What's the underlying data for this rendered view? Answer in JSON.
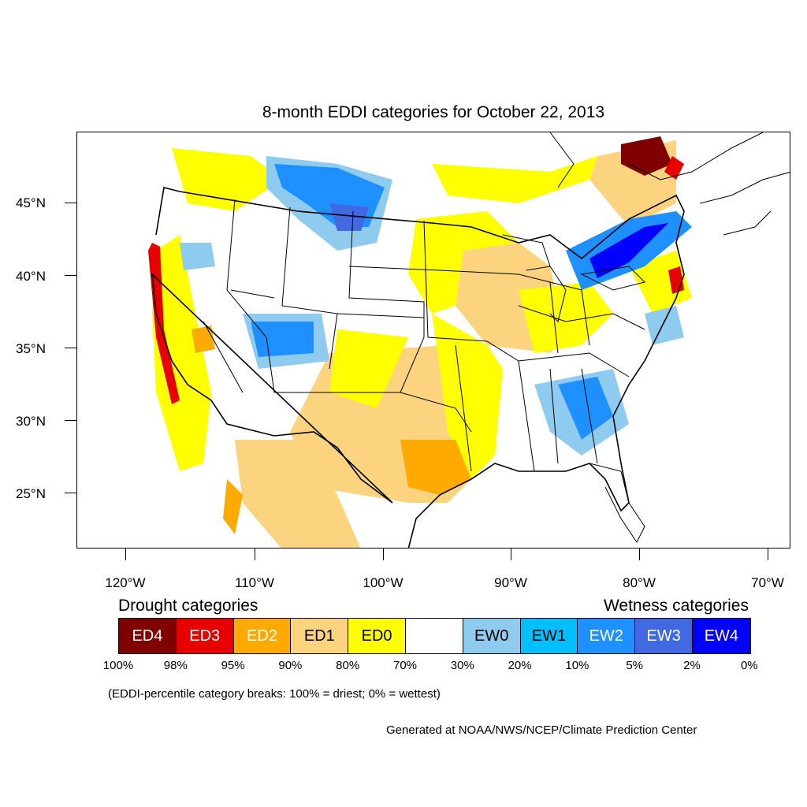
{
  "title": "8-month EDDI categories for October 22, 2013",
  "map": {
    "lat_labels": [
      "45°N",
      "40°N",
      "35°N",
      "30°N",
      "25°N"
    ],
    "lon_labels": [
      "120°W",
      "110°W",
      "100°W",
      "90°W",
      "80°W",
      "70°W"
    ],
    "colors": {
      "ED4": "#800000",
      "ED3": "#e60000",
      "ED2": "#ffaa00",
      "ED1": "#fcd37f",
      "ED0": "#ffff00",
      "neutral": "#ffffff",
      "EW0": "#8fcbef",
      "EW1": "#00bfff",
      "EW2": "#1e90ff",
      "EW3": "#4169e1",
      "EW4": "#0000ff"
    }
  },
  "legend": {
    "drought_title": "Drought categories",
    "wetness_title": "Wetness categories",
    "categories": [
      {
        "label": "ED4",
        "color": "#800000",
        "text_color": "#ffffff"
      },
      {
        "label": "ED3",
        "color": "#e60000",
        "text_color": "#ffffff"
      },
      {
        "label": "ED2",
        "color": "#ffaa00",
        "text_color": "#ffffff"
      },
      {
        "label": "ED1",
        "color": "#fcd37f",
        "text_color": "#000000"
      },
      {
        "label": "ED0",
        "color": "#ffff00",
        "text_color": "#000000"
      },
      {
        "label": "",
        "color": "#ffffff",
        "text_color": "#000000"
      },
      {
        "label": "EW0",
        "color": "#8fcbef",
        "text_color": "#000000"
      },
      {
        "label": "EW1",
        "color": "#00bfff",
        "text_color": "#000000"
      },
      {
        "label": "EW2",
        "color": "#1e90ff",
        "text_color": "#ffffff"
      },
      {
        "label": "EW3",
        "color": "#4169e1",
        "text_color": "#ffffff"
      },
      {
        "label": "EW4",
        "color": "#0000ff",
        "text_color": "#ffffff"
      }
    ],
    "percent_breaks": [
      "100%",
      "98%",
      "95%",
      "90%",
      "80%",
      "70%",
      "30%",
      "20%",
      "10%",
      "5%",
      "2%",
      "0%"
    ]
  },
  "note": "(EDDI-percentile category breaks: 100% = driest; 0% = wettest)",
  "credit": "Generated at NOAA/NWS/NCEP/Climate Prediction Center"
}
